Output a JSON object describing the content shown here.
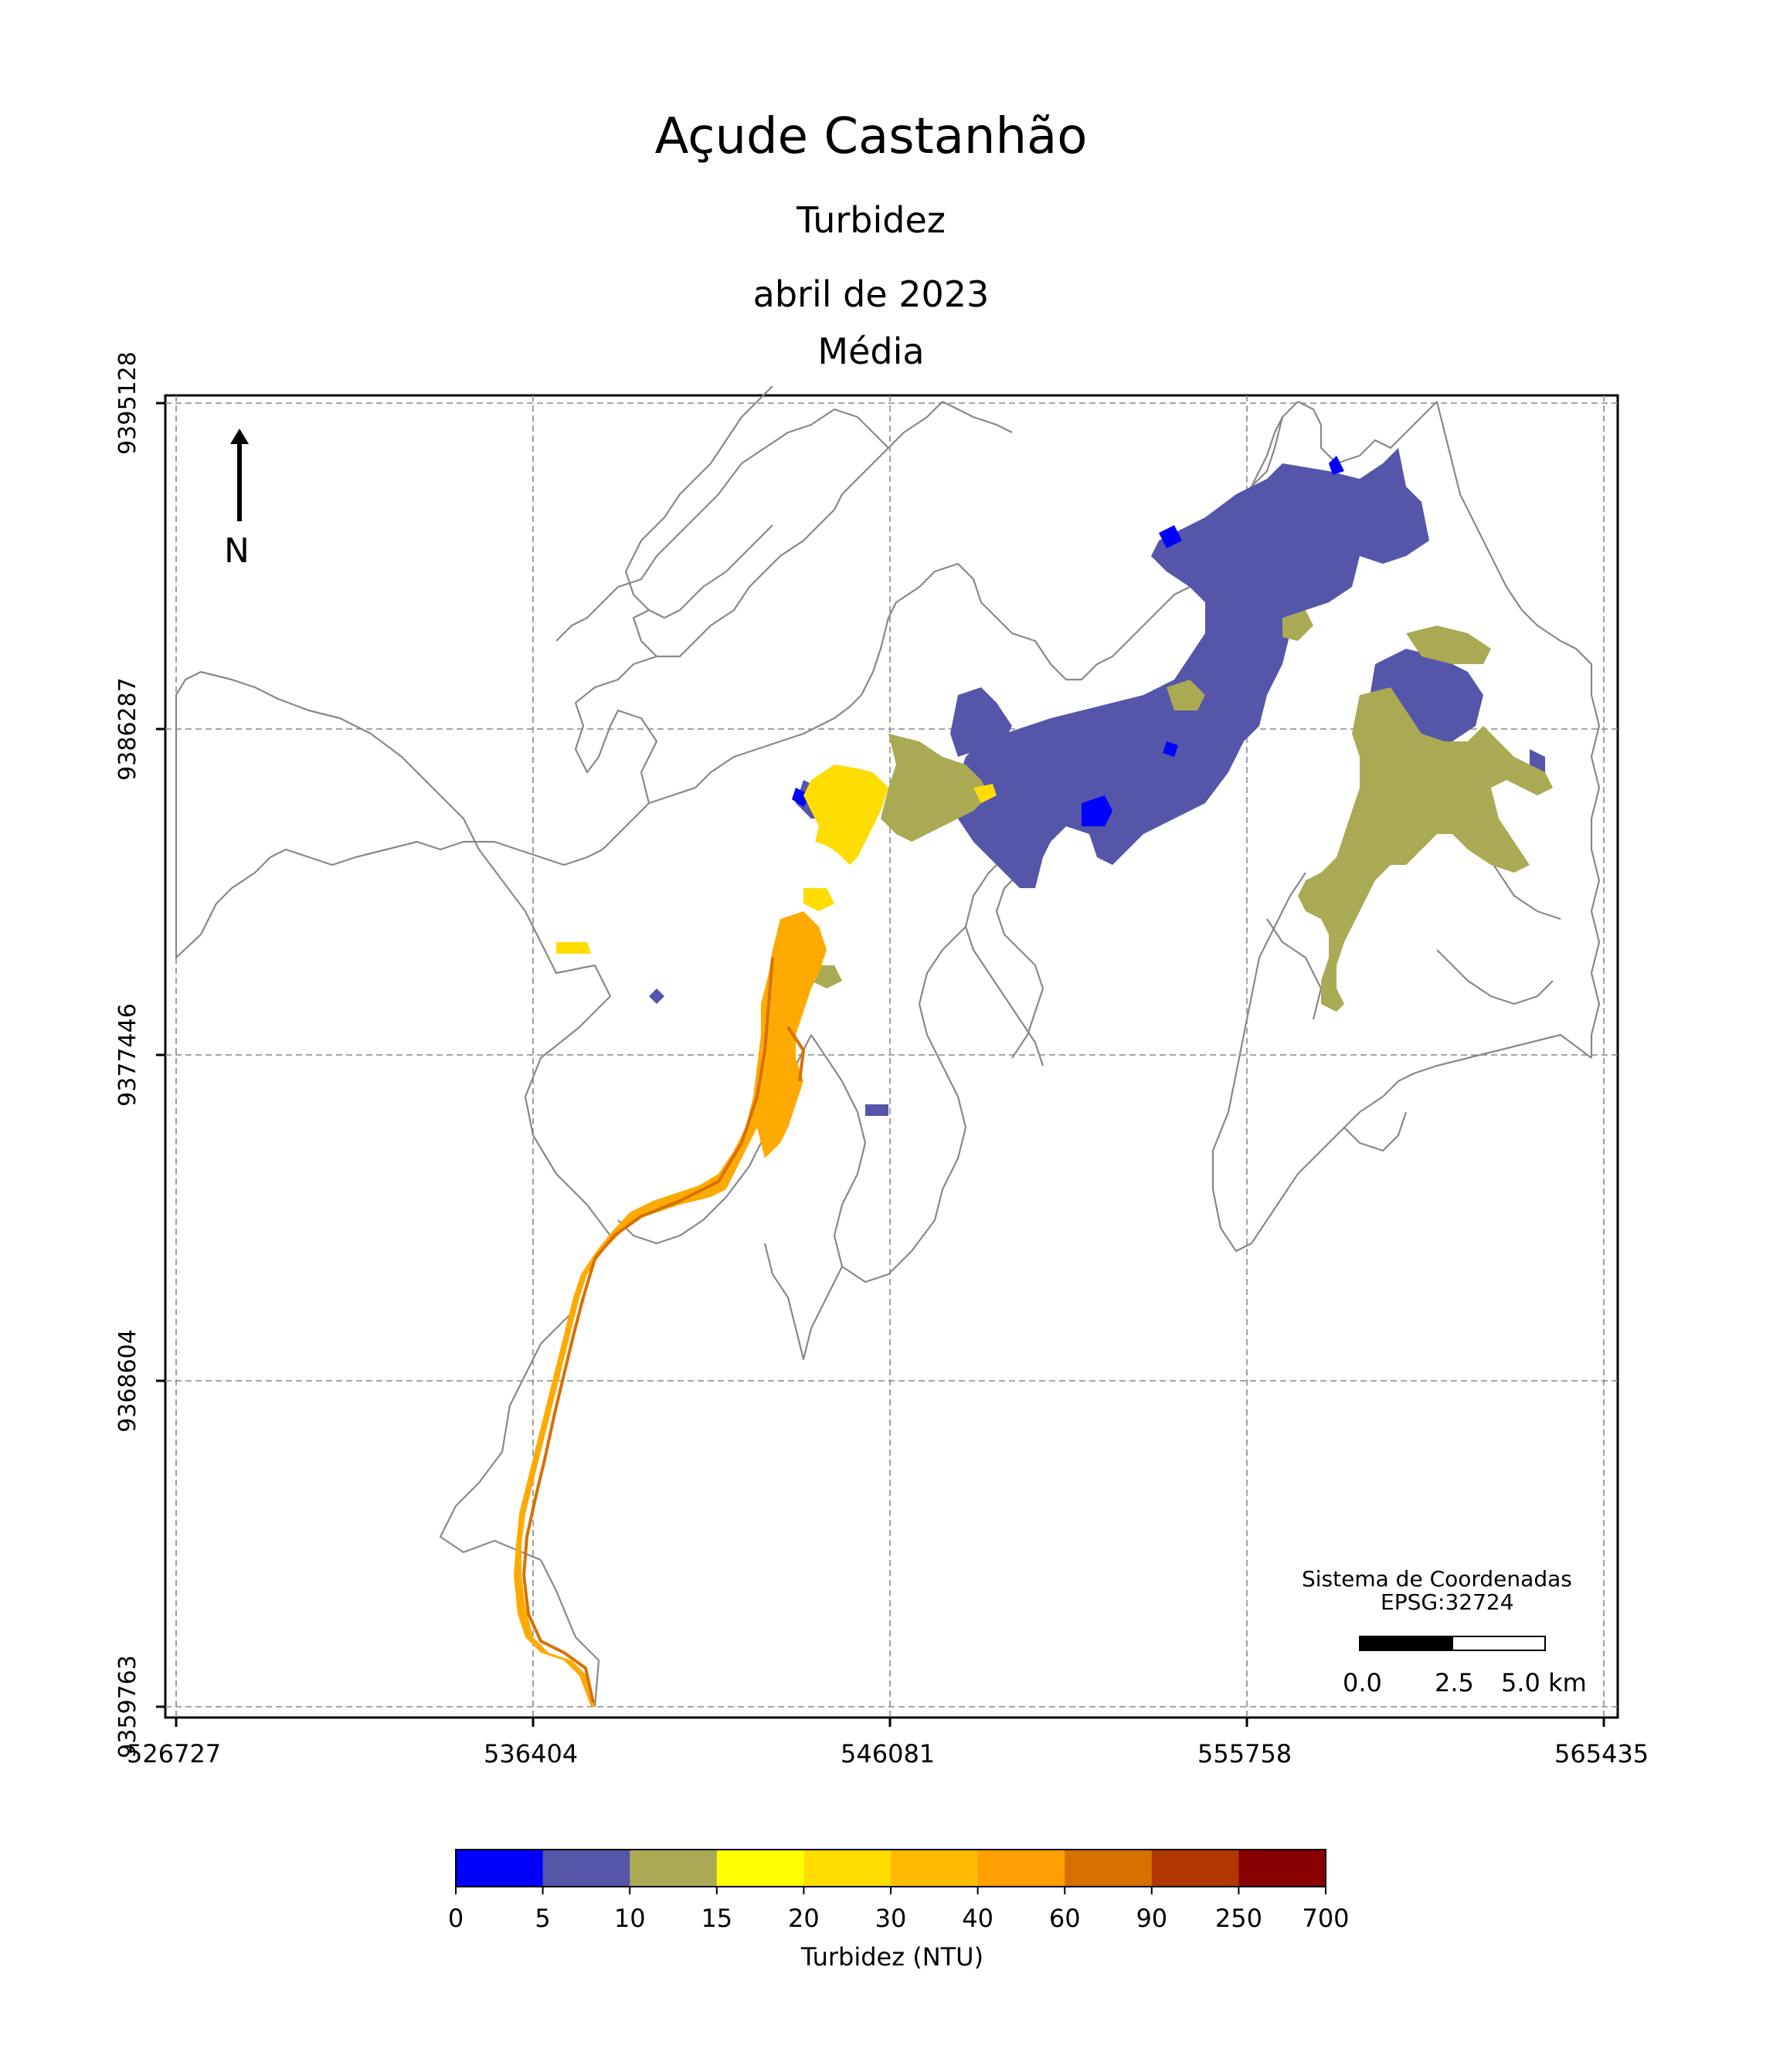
{
  "title": "Açude Castanhão",
  "subtitle": "Turbidez",
  "date": "abril de 2023",
  "statistic": "Média",
  "north_label": "N",
  "crs": {
    "line1": "Sistema de Coordenadas",
    "line2": "EPSG:32724"
  },
  "scalebar": {
    "labels": [
      "0.0",
      "2.5",
      "5.0 km"
    ]
  },
  "axes": {
    "x_ticks": [
      "526727",
      "536404",
      "546081",
      "555758",
      "565435"
    ],
    "y_ticks": [
      "9395128",
      "9386287",
      "9377446",
      "9368604",
      "9359763"
    ],
    "grid": true
  },
  "colorbar": {
    "title": "Turbidez (NTU)",
    "bounds": [
      "0",
      "5",
      "10",
      "15",
      "20",
      "30",
      "40",
      "60",
      "90",
      "250",
      "700"
    ],
    "colors": [
      "#0000ff",
      "#5555aa",
      "#aaaa55",
      "#ffff00",
      "#ffdd00",
      "#ffbb00",
      "#ff9f00",
      "#d87000",
      "#b03800",
      "#8a0000"
    ]
  },
  "colors": {
    "outline": "#888888",
    "grid": "#888888",
    "low_blue": "#5555aa",
    "deep_blue": "#0000ff",
    "olive": "#aaaa55",
    "yellow": "#ffdd00",
    "orange": "#ffaa00",
    "dark_orange": "#d87000"
  }
}
